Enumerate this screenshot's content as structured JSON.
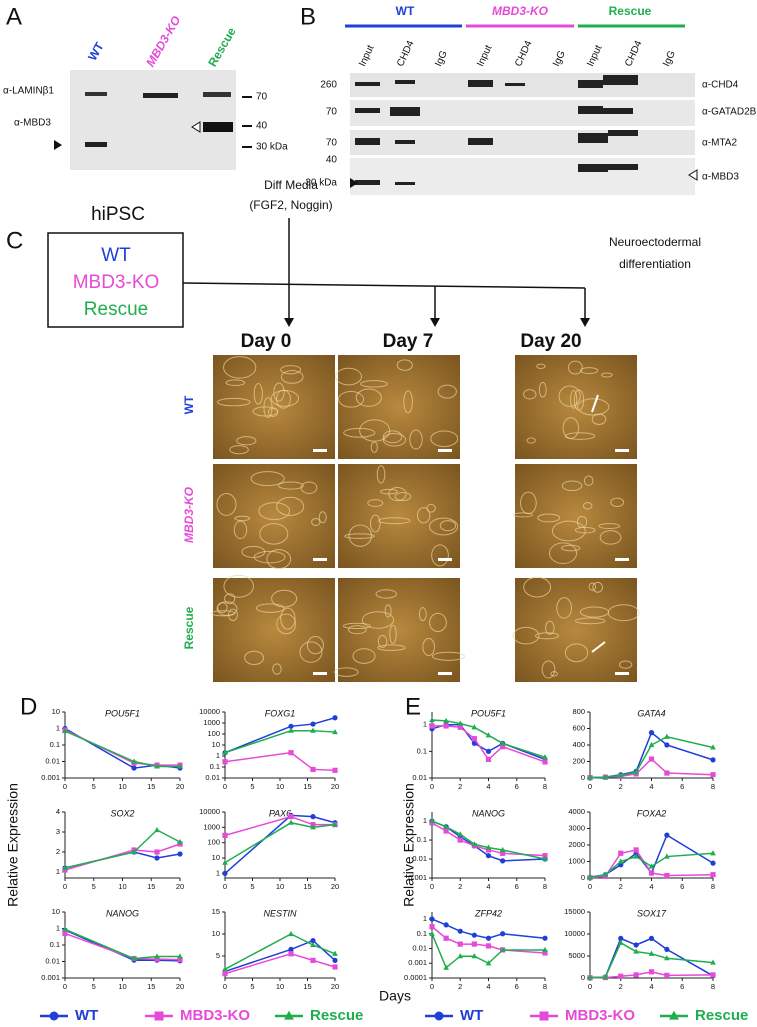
{
  "panel_a": {
    "label": "A",
    "lanes": [
      "WT",
      "MBD3-KO",
      "Rescue"
    ],
    "antibodies": [
      "α-LAMINβ1",
      "α-MBD3"
    ],
    "markers": [
      "70",
      "40",
      "30 kDa"
    ]
  },
  "panel_b": {
    "label": "B",
    "groups": [
      "WT",
      "MBD3-KO",
      "Rescue"
    ],
    "lanes": [
      "Input",
      "CHD4",
      "IgG"
    ],
    "markers": [
      "260",
      "70",
      "70",
      "40",
      "30 kDa"
    ],
    "antibodies": [
      "α-CHD4",
      "α-GATAD2B",
      "α-MTA2",
      "α-MBD3"
    ]
  },
  "panel_c": {
    "label": "C",
    "cell_type": "hiPSC",
    "lines": [
      "WT",
      "MBD3-KO",
      "Rescue"
    ],
    "treatment": [
      "Diff Media",
      "(FGF2, Noggin)"
    ],
    "outcome": [
      "Neuroectodermal",
      "differentiation"
    ],
    "days": [
      "Day 0",
      "Day 7",
      "Day 20"
    ]
  },
  "panel_d": {
    "label": "D",
    "y_label": "Relative Expression",
    "x_label": "Days"
  },
  "panel_e": {
    "label": "E",
    "y_label": "Relative Expression"
  },
  "chart_data": [
    {
      "type": "line",
      "title": "POU5F1",
      "x": [
        0,
        12,
        16,
        20
      ],
      "xlim": [
        0,
        20
      ],
      "xticks": [
        0,
        5,
        10,
        15,
        20
      ],
      "log_y": true,
      "ylim": [
        0.001,
        10
      ],
      "yticks": [
        0.001,
        0.01,
        0.1,
        1,
        10
      ],
      "series": [
        {
          "name": "WT",
          "color": "#1f3fd6",
          "marker": "circle",
          "values": [
            1,
            0.004,
            0.006,
            0.004
          ]
        },
        {
          "name": "MBD3-KO",
          "color": "#e64ad8",
          "marker": "square",
          "values": [
            0.8,
            0.008,
            0.006,
            0.006
          ]
        },
        {
          "name": "Rescue",
          "color": "#1fae4f",
          "marker": "triangle",
          "values": [
            0.7,
            0.01,
            0.005,
            0.005
          ]
        }
      ]
    },
    {
      "type": "line",
      "title": "FOXG1",
      "x": [
        0,
        12,
        16,
        20
      ],
      "xlim": [
        0,
        20
      ],
      "xticks": [
        0,
        5,
        10,
        15,
        20
      ],
      "log_y": true,
      "ylim": [
        0.01,
        10000
      ],
      "yticks": [
        0.01,
        0.1,
        1,
        10,
        100,
        1000,
        10000
      ],
      "series": [
        {
          "name": "WT",
          "color": "#1f3fd6",
          "marker": "circle",
          "values": [
            2,
            500,
            800,
            3000
          ]
        },
        {
          "name": "MBD3-KO",
          "color": "#e64ad8",
          "marker": "square",
          "values": [
            0.3,
            2,
            0.06,
            0.05
          ]
        },
        {
          "name": "Rescue",
          "color": "#1fae4f",
          "marker": "triangle",
          "values": [
            2,
            200,
            200,
            150
          ]
        }
      ]
    },
    {
      "type": "line",
      "title": "SOX2",
      "x": [
        0,
        12,
        16,
        20
      ],
      "xlim": [
        0,
        20
      ],
      "xticks": [
        0,
        5,
        10,
        15,
        20
      ],
      "log_y": false,
      "ylim": [
        0.7,
        4
      ],
      "yticks": [
        1,
        2,
        3,
        4
      ],
      "series": [
        {
          "name": "WT",
          "color": "#1f3fd6",
          "marker": "circle",
          "values": [
            1.2,
            2.0,
            1.7,
            1.9
          ]
        },
        {
          "name": "MBD3-KO",
          "color": "#e64ad8",
          "marker": "square",
          "values": [
            1.1,
            2.1,
            2.0,
            2.4
          ]
        },
        {
          "name": "Rescue",
          "color": "#1fae4f",
          "marker": "triangle",
          "values": [
            1.2,
            2.0,
            3.1,
            2.5
          ]
        }
      ]
    },
    {
      "type": "line",
      "title": "PAX6",
      "x": [
        0,
        12,
        16,
        20
      ],
      "xlim": [
        0,
        20
      ],
      "xticks": [
        0,
        5,
        10,
        15,
        20
      ],
      "log_y": true,
      "ylim": [
        0.5,
        10000
      ],
      "yticks": [
        1,
        10,
        100,
        1000,
        10000
      ],
      "series": [
        {
          "name": "WT",
          "color": "#1f3fd6",
          "marker": "circle",
          "values": [
            1,
            6000,
            5000,
            2000
          ]
        },
        {
          "name": "MBD3-KO",
          "color": "#e64ad8",
          "marker": "square",
          "values": [
            300,
            5000,
            1500,
            1500
          ]
        },
        {
          "name": "Rescue",
          "color": "#1fae4f",
          "marker": "triangle",
          "values": [
            5,
            2000,
            1000,
            1500
          ]
        }
      ]
    },
    {
      "type": "line",
      "title": "NANOG",
      "x": [
        0,
        12,
        16,
        20
      ],
      "xlim": [
        0,
        20
      ],
      "xticks": [
        0,
        5,
        10,
        15,
        20
      ],
      "log_y": true,
      "ylim": [
        0.001,
        10
      ],
      "yticks": [
        0.001,
        0.01,
        0.1,
        1,
        10
      ],
      "series": [
        {
          "name": "WT",
          "color": "#1f3fd6",
          "marker": "circle",
          "values": [
            0.8,
            0.012,
            0.012,
            0.011
          ]
        },
        {
          "name": "MBD3-KO",
          "color": "#e64ad8",
          "marker": "square",
          "values": [
            0.5,
            0.015,
            0.014,
            0.013
          ]
        },
        {
          "name": "Rescue",
          "color": "#1fae4f",
          "marker": "triangle",
          "values": [
            0.9,
            0.015,
            0.02,
            0.02
          ]
        }
      ]
    },
    {
      "type": "line",
      "title": "NESTIN",
      "x": [
        0,
        12,
        16,
        20
      ],
      "xlim": [
        0,
        20
      ],
      "xticks": [
        0,
        5,
        10,
        15,
        20
      ],
      "log_y": false,
      "ylim": [
        0,
        15
      ],
      "yticks": [
        5,
        10,
        15
      ],
      "series": [
        {
          "name": "WT",
          "color": "#1f3fd6",
          "marker": "circle",
          "values": [
            1.5,
            6.5,
            8.5,
            4
          ]
        },
        {
          "name": "MBD3-KO",
          "color": "#e64ad8",
          "marker": "square",
          "values": [
            1,
            5.5,
            4,
            2.5
          ]
        },
        {
          "name": "Rescue",
          "color": "#1fae4f",
          "marker": "triangle",
          "values": [
            2,
            10,
            7.5,
            5.5
          ]
        }
      ]
    },
    {
      "type": "line",
      "title": "POU5F1",
      "x": [
        0,
        1,
        2,
        3,
        4,
        5,
        8
      ],
      "xlim": [
        0,
        8
      ],
      "xticks": [
        0,
        2,
        4,
        6,
        8
      ],
      "log_y": true,
      "ylim": [
        0.01,
        3
      ],
      "yticks": [
        0.01,
        0.1,
        1
      ],
      "series": [
        {
          "name": "WT",
          "color": "#1f3fd6",
          "marker": "circle",
          "values": [
            0.7,
            1,
            1,
            0.2,
            0.1,
            0.2,
            0.05
          ]
        },
        {
          "name": "MBD3-KO",
          "color": "#e64ad8",
          "marker": "square",
          "values": [
            0.9,
            0.9,
            0.8,
            0.3,
            0.05,
            0.15,
            0.04
          ]
        },
        {
          "name": "Rescue",
          "color": "#1fae4f",
          "marker": "triangle",
          "values": [
            1.5,
            1.4,
            1.1,
            0.8,
            0.4,
            0.2,
            0.06
          ]
        }
      ]
    },
    {
      "type": "line",
      "title": "GATA4",
      "x": [
        0,
        1,
        2,
        3,
        4,
        5,
        8
      ],
      "xlim": [
        0,
        8
      ],
      "xticks": [
        0,
        2,
        4,
        6,
        8
      ],
      "log_y": false,
      "ylim": [
        0,
        800
      ],
      "yticks": [
        0,
        200,
        400,
        600,
        800
      ],
      "series": [
        {
          "name": "WT",
          "color": "#1f3fd6",
          "marker": "circle",
          "values": [
            5,
            10,
            40,
            80,
            550,
            400,
            220
          ]
        },
        {
          "name": "MBD3-KO",
          "color": "#e64ad8",
          "marker": "square",
          "values": [
            5,
            10,
            20,
            50,
            230,
            60,
            40
          ]
        },
        {
          "name": "Rescue",
          "color": "#1fae4f",
          "marker": "triangle",
          "values": [
            5,
            10,
            30,
            70,
            400,
            500,
            370
          ]
        }
      ]
    },
    {
      "type": "line",
      "title": "NANOG",
      "x": [
        0,
        1,
        2,
        3,
        4,
        5,
        8
      ],
      "xlim": [
        0,
        8
      ],
      "xticks": [
        0,
        2,
        4,
        6,
        8
      ],
      "log_y": true,
      "ylim": [
        0.001,
        3
      ],
      "yticks": [
        0.001,
        0.01,
        0.1,
        1
      ],
      "series": [
        {
          "name": "WT",
          "color": "#1f3fd6",
          "marker": "circle",
          "values": [
            1,
            0.5,
            0.15,
            0.05,
            0.015,
            0.008,
            0.01
          ]
        },
        {
          "name": "MBD3-KO",
          "color": "#e64ad8",
          "marker": "square",
          "values": [
            0.8,
            0.3,
            0.1,
            0.05,
            0.03,
            0.02,
            0.015
          ]
        },
        {
          "name": "Rescue",
          "color": "#1fae4f",
          "marker": "triangle",
          "values": [
            1,
            0.5,
            0.2,
            0.06,
            0.04,
            0.03,
            0.01
          ]
        }
      ]
    },
    {
      "type": "line",
      "title": "FOXA2",
      "x": [
        0,
        1,
        2,
        3,
        4,
        5,
        8
      ],
      "xlim": [
        0,
        8
      ],
      "xticks": [
        0,
        2,
        4,
        6,
        8
      ],
      "log_y": false,
      "ylim": [
        0,
        4000
      ],
      "yticks": [
        0,
        1000,
        2000,
        3000,
        4000
      ],
      "series": [
        {
          "name": "WT",
          "color": "#1f3fd6",
          "marker": "circle",
          "values": [
            50,
            200,
            800,
            1500,
            300,
            2600,
            900
          ]
        },
        {
          "name": "MBD3-KO",
          "color": "#e64ad8",
          "marker": "square",
          "values": [
            20,
            100,
            1500,
            1700,
            300,
            150,
            200
          ]
        },
        {
          "name": "Rescue",
          "color": "#1fae4f",
          "marker": "triangle",
          "values": [
            30,
            200,
            1000,
            1300,
            700,
            1300,
            1500
          ]
        }
      ]
    },
    {
      "type": "line",
      "title": "ZFP42",
      "x": [
        0,
        1,
        2,
        3,
        4,
        5,
        8
      ],
      "xlim": [
        0,
        8
      ],
      "xticks": [
        0,
        2,
        4,
        6,
        8
      ],
      "log_y": true,
      "ylim": [
        0.0001,
        3
      ],
      "yticks": [
        0.0001,
        0.001,
        0.01,
        0.1,
        1
      ],
      "series": [
        {
          "name": "WT",
          "color": "#1f3fd6",
          "marker": "circle",
          "values": [
            1,
            0.4,
            0.15,
            0.08,
            0.05,
            0.1,
            0.05
          ]
        },
        {
          "name": "MBD3-KO",
          "color": "#e64ad8",
          "marker": "square",
          "values": [
            0.3,
            0.05,
            0.02,
            0.02,
            0.015,
            0.008,
            0.005
          ]
        },
        {
          "name": "Rescue",
          "color": "#1fae4f",
          "marker": "triangle",
          "values": [
            0.1,
            0.0005,
            0.003,
            0.003,
            0.001,
            0.008,
            0.008
          ]
        }
      ]
    },
    {
      "type": "line",
      "title": "SOX17",
      "x": [
        0,
        1,
        2,
        3,
        4,
        5,
        8
      ],
      "xlim": [
        0,
        8
      ],
      "xticks": [
        0,
        2,
        4,
        6,
        8
      ],
      "log_y": false,
      "ylim": [
        0,
        15000
      ],
      "yticks": [
        0,
        5000,
        10000,
        15000
      ],
      "series": [
        {
          "name": "WT",
          "color": "#1f3fd6",
          "marker": "circle",
          "values": [
            100,
            200,
            9000,
            7500,
            9000,
            6500,
            500
          ]
        },
        {
          "name": "MBD3-KO",
          "color": "#e64ad8",
          "marker": "square",
          "values": [
            50,
            100,
            400,
            700,
            1400,
            600,
            700
          ]
        },
        {
          "name": "Rescue",
          "color": "#1fae4f",
          "marker": "triangle",
          "values": [
            100,
            200,
            8000,
            6000,
            5500,
            4500,
            3500
          ]
        }
      ]
    }
  ]
}
